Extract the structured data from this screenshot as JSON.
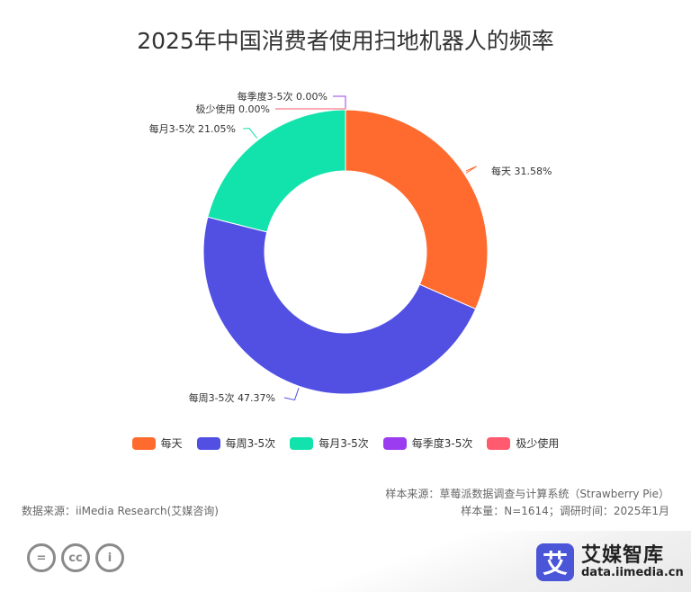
{
  "chart_data": {
    "type": "pie",
    "title": "2025年中国消费者使用扫地机器人的频率",
    "donut": true,
    "categories": [
      "每天",
      "每周3-5次",
      "每月3-5次",
      "每季度3-5次",
      "极少使用"
    ],
    "values": [
      31.58,
      47.37,
      21.05,
      0.0,
      0.0
    ],
    "slice_labels": [
      "每天 31.58%",
      "每周3-5次 47.37%",
      "每月3-5次 21.05%",
      "每季度3-5次 0.00%",
      "极少使用 0.00%"
    ],
    "colors": [
      "#ff6b2e",
      "#5150e3",
      "#12e2ab",
      "#9b3cf0",
      "#ff5a6e"
    ],
    "legend_position": "bottom"
  },
  "notes": {
    "sample_source": "样本来源：草莓派数据调查与计算系统（Strawberry Pie）",
    "sample_size": "样本量：N=1614；调研时间：2025年1月",
    "data_source": "数据来源：iiMedia Research(艾媒咨询)"
  },
  "license_icons": [
    {
      "name": "equals-icon",
      "glyph": "="
    },
    {
      "name": "cc-icon",
      "glyph": "cc"
    },
    {
      "name": "person-icon",
      "glyph": "i"
    }
  ],
  "logo": {
    "mark": "艾",
    "name": "艾媒智库",
    "url": "data.iimedia.cn"
  }
}
